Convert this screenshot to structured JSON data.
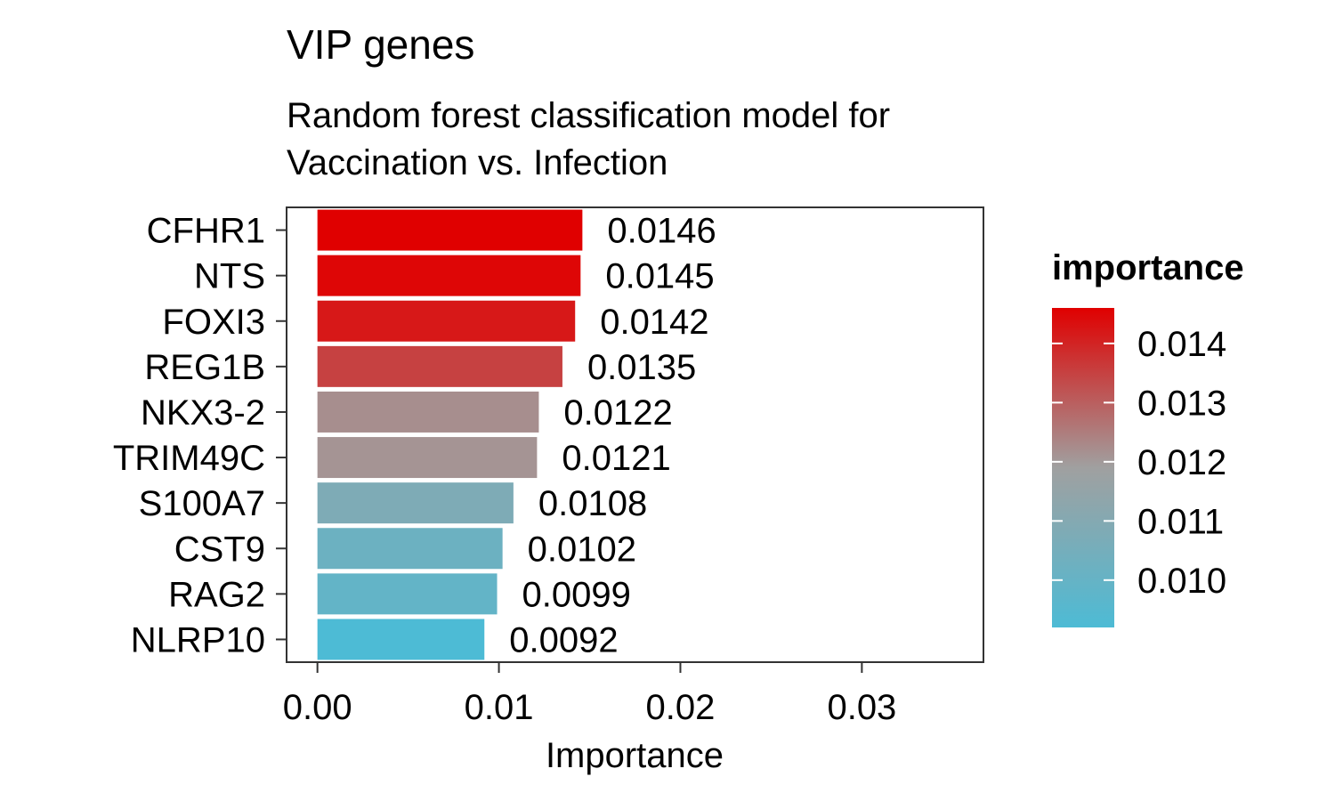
{
  "chart_data": {
    "type": "bar",
    "orientation": "horizontal",
    "title": "VIP genes",
    "subtitle_lines": [
      "Random forest classification model for",
      "Vaccination vs. Infection"
    ],
    "xlabel": "Importance",
    "ylabel": "",
    "xlim": [
      -0.0017,
      0.0367
    ],
    "x_ticks": [
      0.0,
      0.01,
      0.02,
      0.03
    ],
    "x_tick_labels": [
      "0.00",
      "0.01",
      "0.02",
      "0.03"
    ],
    "categories": [
      "CFHR1",
      "NTS",
      "FOXI3",
      "REG1B",
      "NKX3-2",
      "TRIM49C",
      "S100A7",
      "CST9",
      "RAG2",
      "NLRP10"
    ],
    "values": [
      0.0146,
      0.0145,
      0.0142,
      0.0135,
      0.0122,
      0.0121,
      0.0108,
      0.0102,
      0.0099,
      0.0092
    ],
    "value_labels": [
      "0.0146",
      "0.0145",
      "0.0142",
      "0.0135",
      "0.0122",
      "0.0121",
      "0.0108",
      "0.0102",
      "0.0099",
      "0.0092"
    ],
    "grid": false,
    "legend": {
      "title": "importance",
      "placement": "right",
      "type": "colorbar",
      "range": [
        0.0092,
        0.0146
      ],
      "ticks": [
        0.01,
        0.011,
        0.012,
        0.013,
        0.014
      ],
      "tick_labels": [
        "0.010",
        "0.011",
        "0.012",
        "0.013",
        "0.014"
      ]
    },
    "colors": {
      "low": "#4dbbd5",
      "mid": "#a0a0a0",
      "high": "#e00000"
    }
  }
}
